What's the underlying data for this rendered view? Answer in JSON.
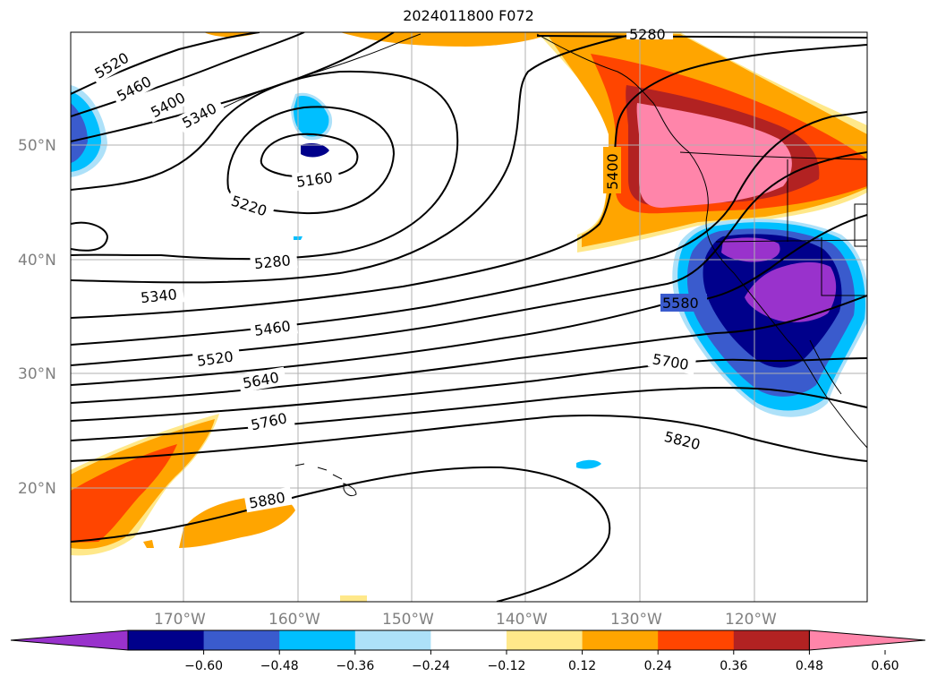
{
  "title": "2024011800 F072",
  "map": {
    "lat_labels": [
      "50°N",
      "40°N",
      "30°N",
      "20°N"
    ],
    "lon_labels": [
      "170°W",
      "160°W",
      "150°W",
      "140°W",
      "130°W",
      "120°W"
    ],
    "contour_labels": [
      "5520",
      "5460",
      "5400",
      "5340",
      "5160",
      "5220",
      "5280",
      "5340",
      "5460",
      "5520",
      "5640",
      "5760",
      "5880",
      "5400",
      "5580",
      "5700",
      "5820",
      "5280"
    ],
    "colors": {
      "purple": "#9932CC",
      "navy": "#00008B",
      "royal": "#3A5BCD",
      "deep_sky": "#00BFFF",
      "light_blue": "#ADE1F9",
      "light_yellow": "#FFE88A",
      "orange": "#FFA500",
      "orange_red": "#FF4500",
      "firebrick": "#B22222",
      "pink": "#FF85AA"
    }
  },
  "colorbar": {
    "ticks": [
      "−0.60",
      "−0.48",
      "−0.36",
      "−0.24",
      "−0.12",
      "0.12",
      "0.24",
      "0.36",
      "0.48",
      "0.60"
    ],
    "bins": [
      "#9932CC",
      "#00008B",
      "#3A5BCD",
      "#00BFFF",
      "#ADE1F9",
      "#FFFFFF",
      "#FFE88A",
      "#FFA500",
      "#FF4500",
      "#B22222",
      "#FF85AA"
    ]
  }
}
